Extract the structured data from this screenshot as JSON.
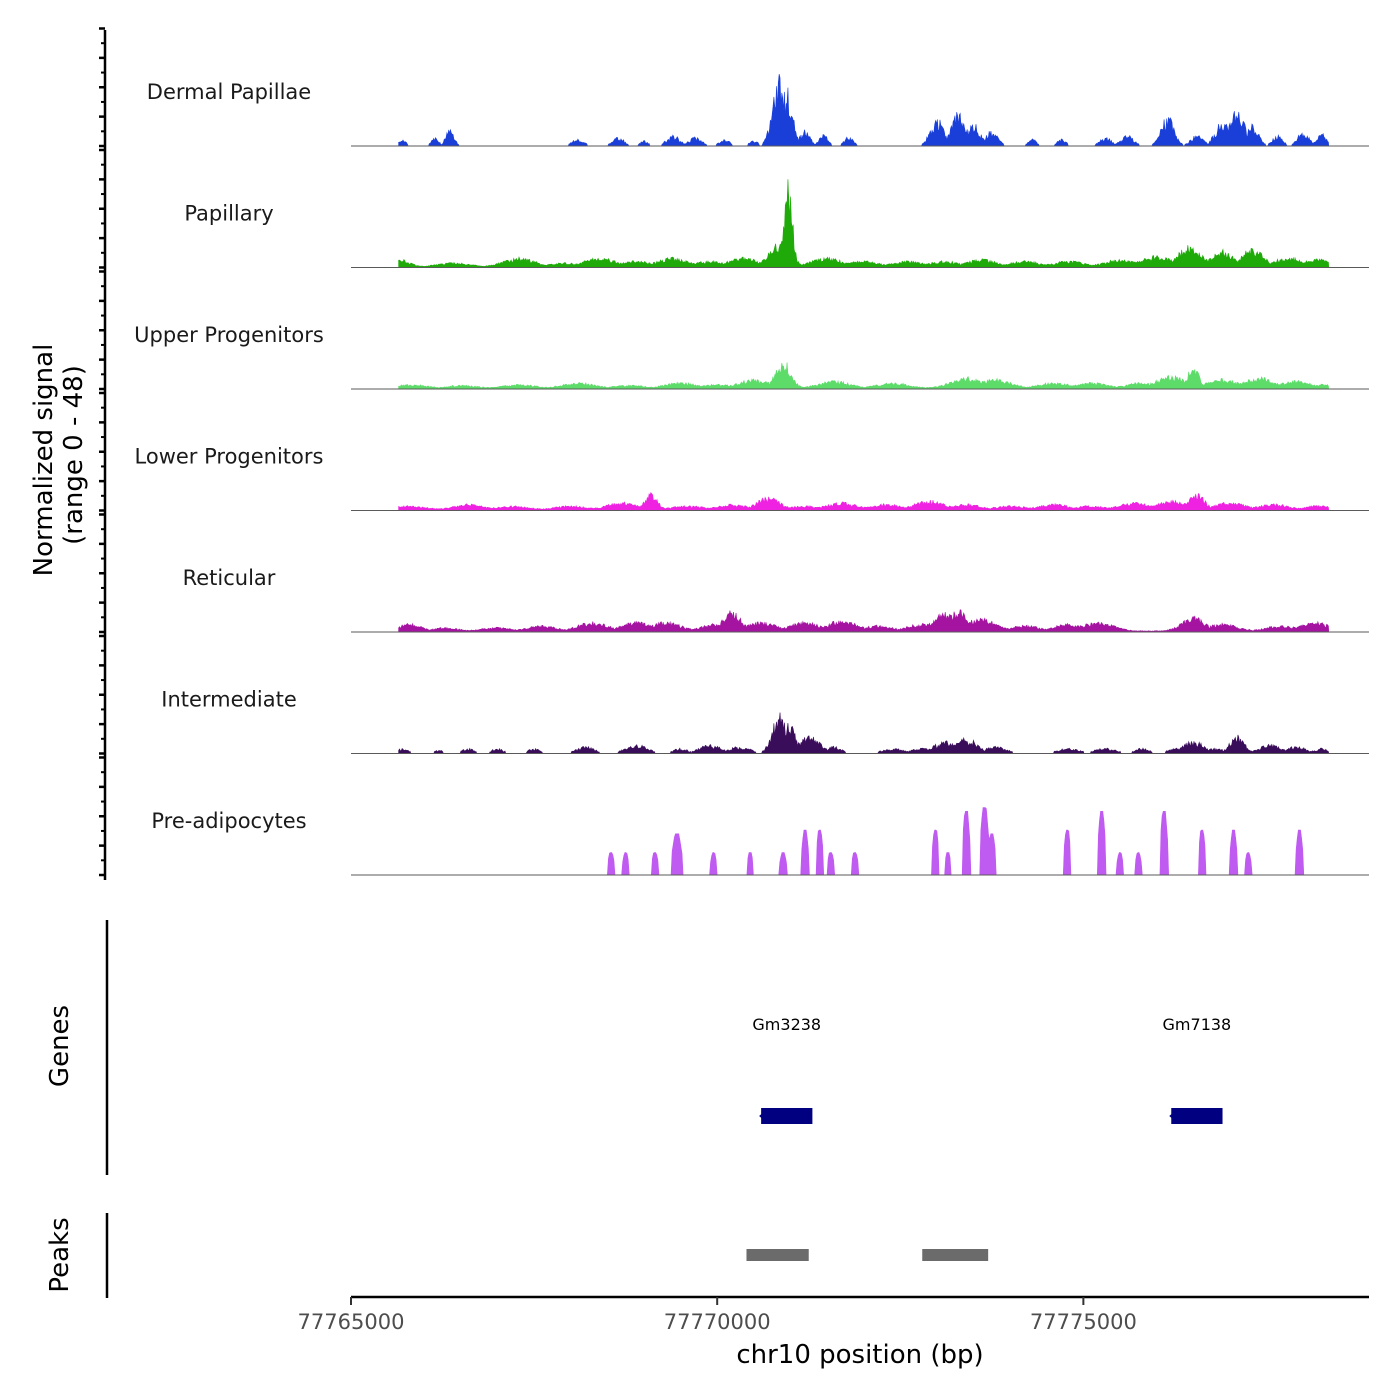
{
  "chart_data": {
    "type": "area",
    "title": "",
    "ylabel": "Normalized signal",
    "ylabel_range": "(range 0 - 48)",
    "ylim": [
      0,
      48
    ],
    "xlabel": "chr10 position (bp)",
    "xlim": [
      77765000,
      77778900
    ],
    "x_ticks": [
      77765000,
      77770000,
      77775000
    ],
    "x_tick_labels": [
      "77765000",
      "77770000",
      "77775000"
    ],
    "data_start": 77765650,
    "data_end": 77778350,
    "tracks": [
      {
        "name": "Dermal Papillae",
        "color": "#1a3fd9",
        "style": "sparse",
        "peaks": [
          [
            77765700,
            4,
            50
          ],
          [
            77766150,
            5,
            50
          ],
          [
            77766350,
            9,
            60
          ],
          [
            77768100,
            4,
            80
          ],
          [
            77768650,
            5,
            80
          ],
          [
            77769000,
            3,
            60
          ],
          [
            77769400,
            6,
            90
          ],
          [
            77769700,
            5,
            90
          ],
          [
            77770100,
            4,
            70
          ],
          [
            77770500,
            3,
            60
          ],
          [
            77770850,
            40,
            90
          ],
          [
            77770950,
            32,
            80
          ],
          [
            77771200,
            9,
            70
          ],
          [
            77771450,
            7,
            60
          ],
          [
            77771800,
            6,
            60
          ],
          [
            77773000,
            16,
            90
          ],
          [
            77773300,
            20,
            100
          ],
          [
            77773500,
            13,
            90
          ],
          [
            77773750,
            9,
            80
          ],
          [
            77774300,
            4,
            60
          ],
          [
            77774700,
            4,
            60
          ],
          [
            77775300,
            5,
            80
          ],
          [
            77775600,
            6,
            90
          ],
          [
            77776150,
            17,
            90
          ],
          [
            77776550,
            6,
            90
          ],
          [
            77776900,
            14,
            100
          ],
          [
            77777100,
            22,
            100
          ],
          [
            77777300,
            12,
            90
          ],
          [
            77777650,
            6,
            70
          ],
          [
            77778000,
            8,
            80
          ],
          [
            77778250,
            7,
            70
          ]
        ]
      },
      {
        "name": "Papillary",
        "color": "#1faa0a",
        "style": "continuous",
        "peaks": [
          [
            77765700,
            4,
            100
          ],
          [
            77766400,
            2,
            200
          ],
          [
            77767300,
            5,
            200
          ],
          [
            77767900,
            2,
            200
          ],
          [
            77768400,
            5,
            200
          ],
          [
            77768900,
            3,
            200
          ],
          [
            77769400,
            5,
            200
          ],
          [
            77769900,
            3,
            200
          ],
          [
            77770350,
            5,
            200
          ],
          [
            77770850,
            13,
            150
          ],
          [
            77770970,
            48,
            55
          ],
          [
            77771500,
            5,
            200
          ],
          [
            77772000,
            3,
            200
          ],
          [
            77772600,
            3,
            200
          ],
          [
            77773100,
            3,
            200
          ],
          [
            77773600,
            4,
            200
          ],
          [
            77774200,
            3,
            200
          ],
          [
            77774800,
            3,
            200
          ],
          [
            77775500,
            4,
            200
          ],
          [
            77776000,
            6,
            200
          ],
          [
            77776450,
            12,
            150
          ],
          [
            77776900,
            9,
            150
          ],
          [
            77777300,
            10,
            150
          ],
          [
            77777800,
            5,
            200
          ],
          [
            77778200,
            4,
            200
          ]
        ]
      },
      {
        "name": "Upper Progenitors",
        "color": "#5ddc6a",
        "style": "continuous",
        "peaks": [
          [
            77765800,
            2,
            200
          ],
          [
            77766500,
            1.5,
            200
          ],
          [
            77767300,
            2,
            200
          ],
          [
            77768100,
            3,
            200
          ],
          [
            77768800,
            1.5,
            200
          ],
          [
            77769500,
            3,
            200
          ],
          [
            77770000,
            2,
            200
          ],
          [
            77770500,
            5,
            200
          ],
          [
            77770900,
            16,
            100
          ],
          [
            77771600,
            4,
            200
          ],
          [
            77772400,
            3,
            200
          ],
          [
            77773400,
            6,
            200
          ],
          [
            77773800,
            5,
            200
          ],
          [
            77774600,
            3,
            200
          ],
          [
            77775100,
            3,
            200
          ],
          [
            77775800,
            3,
            200
          ],
          [
            77776200,
            7,
            200
          ],
          [
            77776500,
            13,
            70
          ],
          [
            77776900,
            5,
            200
          ],
          [
            77777400,
            6,
            200
          ],
          [
            77777900,
            4,
            200
          ],
          [
            77778300,
            2,
            200
          ]
        ]
      },
      {
        "name": "Lower Progenitors",
        "color": "#ee22e0",
        "style": "continuous",
        "peaks": [
          [
            77765800,
            2,
            200
          ],
          [
            77766600,
            3,
            200
          ],
          [
            77767200,
            2,
            200
          ],
          [
            77768000,
            2,
            200
          ],
          [
            77768700,
            4,
            200
          ],
          [
            77769100,
            9,
            80
          ],
          [
            77769600,
            2,
            200
          ],
          [
            77770200,
            3,
            200
          ],
          [
            77770700,
            7,
            150
          ],
          [
            77771200,
            2,
            200
          ],
          [
            77771700,
            4,
            200
          ],
          [
            77772300,
            3,
            200
          ],
          [
            77772900,
            5,
            200
          ],
          [
            77773400,
            3,
            200
          ],
          [
            77774000,
            2,
            200
          ],
          [
            77774600,
            3,
            200
          ],
          [
            77775100,
            2,
            200
          ],
          [
            77775700,
            4,
            200
          ],
          [
            77776200,
            5,
            200
          ],
          [
            77776550,
            9,
            100
          ],
          [
            77777000,
            4,
            200
          ],
          [
            77777600,
            3,
            200
          ],
          [
            77778200,
            2,
            200
          ]
        ]
      },
      {
        "name": "Reticular",
        "color": "#a414a0",
        "style": "continuous",
        "peaks": [
          [
            77765800,
            4,
            150
          ],
          [
            77766300,
            2,
            150
          ],
          [
            77767000,
            2,
            200
          ],
          [
            77767600,
            3,
            200
          ],
          [
            77768300,
            5,
            200
          ],
          [
            77768900,
            5,
            200
          ],
          [
            77769300,
            5,
            200
          ],
          [
            77770000,
            4,
            200
          ],
          [
            77770200,
            11,
            120
          ],
          [
            77770600,
            5,
            200
          ],
          [
            77771200,
            5,
            200
          ],
          [
            77771700,
            6,
            200
          ],
          [
            77772200,
            3,
            200
          ],
          [
            77772800,
            4,
            200
          ],
          [
            77773100,
            10,
            150
          ],
          [
            77773300,
            12,
            120
          ],
          [
            77773600,
            7,
            200
          ],
          [
            77774200,
            3,
            200
          ],
          [
            77774800,
            4,
            200
          ],
          [
            77775200,
            5,
            200
          ],
          [
            77776500,
            8,
            150
          ],
          [
            77776900,
            4,
            200
          ],
          [
            77777700,
            3,
            200
          ],
          [
            77778150,
            5,
            200
          ]
        ]
      },
      {
        "name": "Intermediate",
        "color": "#3a0d5a",
        "style": "sparse",
        "peaks": [
          [
            77765700,
            3,
            80
          ],
          [
            77766200,
            2,
            60
          ],
          [
            77766600,
            3,
            80
          ],
          [
            77767000,
            3,
            80
          ],
          [
            77767500,
            3,
            80
          ],
          [
            77768200,
            4,
            120
          ],
          [
            77768900,
            5,
            150
          ],
          [
            77769500,
            3,
            100
          ],
          [
            77769900,
            5,
            150
          ],
          [
            77770300,
            4,
            150
          ],
          [
            77770850,
            22,
            100
          ],
          [
            77770980,
            18,
            80
          ],
          [
            77771250,
            10,
            150
          ],
          [
            77771600,
            4,
            100
          ],
          [
            77772400,
            3,
            150
          ],
          [
            77772800,
            3,
            150
          ],
          [
            77773100,
            7,
            150
          ],
          [
            77773400,
            9,
            150
          ],
          [
            77773800,
            4,
            150
          ],
          [
            77774800,
            3,
            150
          ],
          [
            77775300,
            3,
            150
          ],
          [
            77775800,
            3,
            100
          ],
          [
            77776250,
            3,
            100
          ],
          [
            77776500,
            7,
            150
          ],
          [
            77776800,
            3,
            120
          ],
          [
            77777100,
            10,
            100
          ],
          [
            77777550,
            5,
            150
          ],
          [
            77777900,
            4,
            150
          ],
          [
            77778250,
            3,
            100
          ]
        ]
      },
      {
        "name": "Pre-adipocytes",
        "color": "#bf5bf0",
        "style": "blocks",
        "peaks": [
          [
            77768550,
            12,
            55
          ],
          [
            77768750,
            12,
            50
          ],
          [
            77769150,
            12,
            55
          ],
          [
            77769450,
            22,
            80
          ],
          [
            77769950,
            12,
            50
          ],
          [
            77770450,
            12,
            50
          ],
          [
            77770900,
            12,
            55
          ],
          [
            77771200,
            24,
            55
          ],
          [
            77771400,
            24,
            55
          ],
          [
            77771550,
            12,
            55
          ],
          [
            77771880,
            12,
            55
          ],
          [
            77772980,
            24,
            55
          ],
          [
            77773150,
            12,
            50
          ],
          [
            77773400,
            34,
            60
          ],
          [
            77773650,
            36,
            70
          ],
          [
            77773750,
            22,
            60
          ],
          [
            77774780,
            24,
            55
          ],
          [
            77775250,
            34,
            60
          ],
          [
            77775500,
            12,
            50
          ],
          [
            77775750,
            12,
            50
          ],
          [
            77776100,
            34,
            60
          ],
          [
            77776620,
            24,
            55
          ],
          [
            77777050,
            24,
            55
          ],
          [
            77777250,
            12,
            50
          ],
          [
            77777950,
            24,
            55
          ]
        ]
      }
    ],
    "genes_track_label": "Genes",
    "genes": [
      {
        "name": "Gm3238",
        "start": 77770600,
        "end": 77771300,
        "strand": "-",
        "color": "#000080"
      },
      {
        "name": "Gm7138",
        "start": 77776200,
        "end": 77776900,
        "strand": "-",
        "color": "#000080"
      }
    ],
    "peaks_track_label": "Peaks",
    "peak_regions": [
      {
        "start": 77770400,
        "end": 77771250,
        "color": "#6b6b6b"
      },
      {
        "start": 77772800,
        "end": 77773700,
        "color": "#6b6b6b"
      }
    ]
  }
}
